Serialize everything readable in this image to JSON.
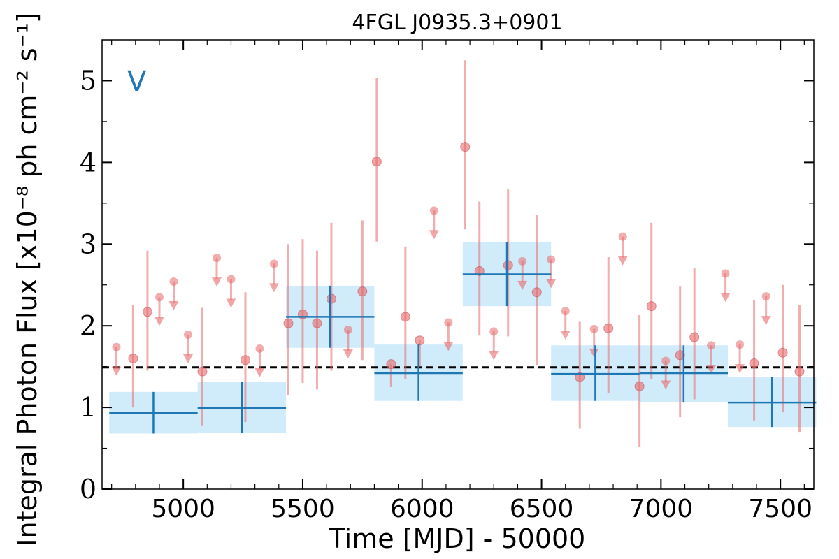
{
  "chart_data": {
    "type": "scatter",
    "title": "4FGL J0935.3+0901",
    "xlabel": "Time [MJD] - 50000",
    "ylabel": "Integral Photon Flux [x10⁻⁸ ph cm⁻² s⁻¹]",
    "band_label": "V",
    "xlim": [
      4660,
      7640
    ],
    "ylim": [
      0,
      5.5
    ],
    "x_ticks": [
      5000,
      5500,
      6000,
      6500,
      7000,
      7500
    ],
    "x_tick_labels": [
      "5000",
      "5500",
      "6000",
      "6500",
      "7000",
      "7500"
    ],
    "y_ticks": [
      0,
      1,
      2,
      3,
      4,
      5
    ],
    "y_tick_labels": [
      "0",
      "1",
      "2",
      "3",
      "4",
      "5"
    ],
    "mean_flux": 1.49,
    "colors": {
      "points": "#e8696b",
      "bins_line": "#1f77b4",
      "bins_fill": "#a9dcf7",
      "mean_line": "#000000"
    },
    "series": [
      {
        "kind": "detections",
        "points": [
          {
            "x": 4790,
            "y": 1.6,
            "lo": 1.0,
            "hi": 2.25
          },
          {
            "x": 4850,
            "y": 2.17,
            "lo": 1.45,
            "hi": 2.92
          },
          {
            "x": 5080,
            "y": 1.44,
            "lo": 0.78,
            "hi": 2.22
          },
          {
            "x": 5260,
            "y": 1.58,
            "lo": 0.82,
            "hi": 2.41
          },
          {
            "x": 5440,
            "y": 2.03,
            "lo": 1.15,
            "hi": 3.0
          },
          {
            "x": 5500,
            "y": 2.14,
            "lo": 1.3,
            "hi": 3.06
          },
          {
            "x": 5560,
            "y": 2.03,
            "lo": 1.22,
            "hi": 2.92
          },
          {
            "x": 5620,
            "y": 2.33,
            "lo": 1.45,
            "hi": 3.26
          },
          {
            "x": 5750,
            "y": 2.42,
            "lo": 1.58,
            "hi": 3.29
          },
          {
            "x": 5810,
            "y": 4.01,
            "lo": 3.03,
            "hi": 5.03
          },
          {
            "x": 5870,
            "y": 1.53,
            "lo": 1.25,
            "hi": 1.53
          },
          {
            "x": 5930,
            "y": 2.11,
            "lo": 1.35,
            "hi": 2.97
          },
          {
            "x": 5990,
            "y": 1.82,
            "lo": 1.5,
            "hi": 1.82
          },
          {
            "x": 6180,
            "y": 4.19,
            "lo": 3.18,
            "hi": 5.25
          },
          {
            "x": 6240,
            "y": 2.67,
            "lo": 1.88,
            "hi": 3.52
          },
          {
            "x": 6360,
            "y": 2.74,
            "lo": 1.87,
            "hi": 3.67
          },
          {
            "x": 6480,
            "y": 2.41,
            "lo": 1.52,
            "hi": 3.36
          },
          {
            "x": 6660,
            "y": 1.37,
            "lo": 0.74,
            "hi": 2.05
          },
          {
            "x": 6780,
            "y": 1.97,
            "lo": 1.18,
            "hi": 2.84
          },
          {
            "x": 6910,
            "y": 1.26,
            "lo": 0.52,
            "hi": 2.13
          },
          {
            "x": 6960,
            "y": 2.24,
            "lo": 1.35,
            "hi": 3.26
          },
          {
            "x": 7080,
            "y": 1.64,
            "lo": 0.88,
            "hi": 2.48
          },
          {
            "x": 7140,
            "y": 1.86,
            "lo": 1.1,
            "hi": 2.71
          },
          {
            "x": 7390,
            "y": 1.54,
            "lo": 0.84,
            "hi": 2.31
          },
          {
            "x": 7510,
            "y": 1.67,
            "lo": 0.94,
            "hi": 2.5
          },
          {
            "x": 7580,
            "y": 1.44,
            "lo": 0.7,
            "hi": 2.25
          }
        ]
      },
      {
        "kind": "upper_limits",
        "points": [
          {
            "x": 4720,
            "y": 1.74
          },
          {
            "x": 4900,
            "y": 2.35
          },
          {
            "x": 4960,
            "y": 2.54
          },
          {
            "x": 5020,
            "y": 1.89
          },
          {
            "x": 5140,
            "y": 2.83
          },
          {
            "x": 5200,
            "y": 2.57
          },
          {
            "x": 5320,
            "y": 1.72
          },
          {
            "x": 5380,
            "y": 2.76
          },
          {
            "x": 5690,
            "y": 1.95
          },
          {
            "x": 6050,
            "y": 3.41
          },
          {
            "x": 6110,
            "y": 2.04
          },
          {
            "x": 6300,
            "y": 1.93
          },
          {
            "x": 6420,
            "y": 2.79
          },
          {
            "x": 6540,
            "y": 2.81
          },
          {
            "x": 6600,
            "y": 2.18
          },
          {
            "x": 6720,
            "y": 1.96
          },
          {
            "x": 6840,
            "y": 3.09
          },
          {
            "x": 7020,
            "y": 1.57
          },
          {
            "x": 7210,
            "y": 1.76
          },
          {
            "x": 7270,
            "y": 2.64
          },
          {
            "x": 7330,
            "y": 1.77
          },
          {
            "x": 7440,
            "y": 2.36
          }
        ]
      },
      {
        "kind": "binned",
        "bins": [
          {
            "x0": 4690,
            "x1": 5060,
            "y": 0.93,
            "lo": 0.68,
            "hi": 1.19
          },
          {
            "x0": 5060,
            "x1": 5430,
            "y": 0.99,
            "lo": 0.69,
            "hi": 1.31
          },
          {
            "x0": 5430,
            "x1": 5800,
            "y": 2.11,
            "lo": 1.73,
            "hi": 2.49
          },
          {
            "x0": 5800,
            "x1": 6170,
            "y": 1.42,
            "lo": 1.08,
            "hi": 1.77
          },
          {
            "x0": 6170,
            "x1": 6540,
            "y": 2.63,
            "lo": 2.24,
            "hi": 3.02
          },
          {
            "x0": 6540,
            "x1": 6910,
            "y": 1.41,
            "lo": 1.08,
            "hi": 1.76
          },
          {
            "x0": 6910,
            "x1": 7280,
            "y": 1.42,
            "lo": 1.06,
            "hi": 1.76
          },
          {
            "x0": 7280,
            "x1": 7650,
            "y": 1.06,
            "lo": 0.76,
            "hi": 1.37
          }
        ]
      }
    ]
  }
}
